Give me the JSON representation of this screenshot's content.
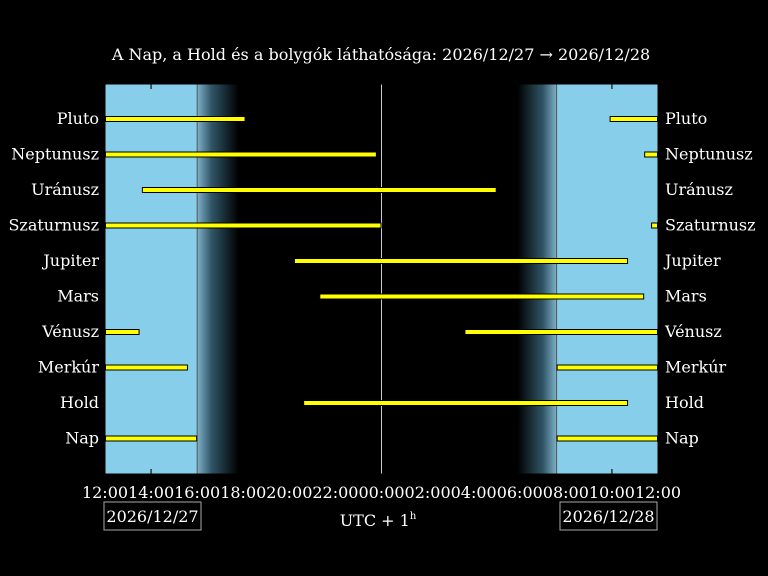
{
  "chart_data": {
    "type": "gantt",
    "title": "A Nap, a Hold és a bolygók láthatósága: 2026/12/27 → 2026/12/28",
    "xlabel": "UTC + 1",
    "xlabel_superscript": "h",
    "start_date_label": "2026/12/27",
    "end_date_label": "2026/12/28",
    "x_range_hours": [
      12,
      36
    ],
    "x_ticks": [
      "12:00",
      "14:00",
      "16:00",
      "18:00",
      "20:00",
      "22:00",
      "00:00",
      "02:00",
      "04:00",
      "06:00",
      "08:00",
      "10:00",
      "12:00"
    ],
    "sunset_hour": 16.0,
    "sunrise_hour": 31.6,
    "twilight_dusk_end_hour": 17.8,
    "twilight_dawn_start_hour": 29.9,
    "midnight_hour": 24.0,
    "colors": {
      "day": "#87ceeb",
      "night": "#000000",
      "bar": "#ffff00",
      "grid": "#cccccc",
      "text": "#ffffff"
    },
    "bodies": [
      {
        "name": "Pluto",
        "segments": [
          [
            12.0,
            18.1
          ],
          [
            33.9,
            36.0
          ]
        ]
      },
      {
        "name": "Neptunusz",
        "segments": [
          [
            12.0,
            23.8
          ],
          [
            35.4,
            36.0
          ]
        ]
      },
      {
        "name": "Uránusz",
        "segments": [
          [
            13.6,
            29.0
          ]
        ]
      },
      {
        "name": "Szaturnusz",
        "segments": [
          [
            12.0,
            24.0
          ],
          [
            35.7,
            36.0
          ]
        ]
      },
      {
        "name": "Jupiter",
        "segments": [
          [
            20.2,
            34.7
          ]
        ]
      },
      {
        "name": "Mars",
        "segments": [
          [
            21.3,
            35.4
          ]
        ]
      },
      {
        "name": "Vénusz",
        "segments": [
          [
            12.0,
            13.5
          ],
          [
            27.6,
            36.0
          ]
        ]
      },
      {
        "name": "Merkúr",
        "segments": [
          [
            12.0,
            15.6
          ],
          [
            31.6,
            36.0
          ]
        ]
      },
      {
        "name": "Hold",
        "segments": [
          [
            20.6,
            34.7
          ]
        ]
      },
      {
        "name": "Nap",
        "segments": [
          [
            12.0,
            16.0
          ],
          [
            31.6,
            36.0
          ]
        ]
      }
    ]
  }
}
